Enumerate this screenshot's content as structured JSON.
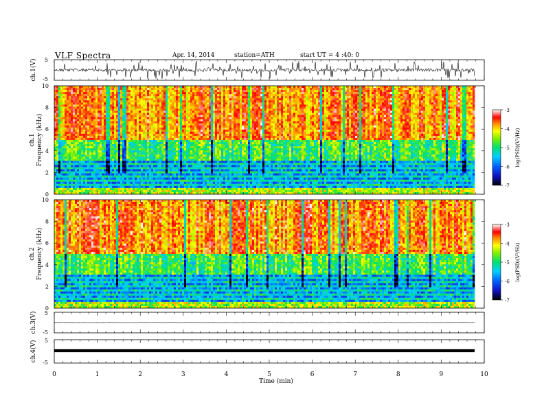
{
  "header": {
    "title": "VLF  Spectra",
    "date": "Apr. 14, 2014",
    "station": "station=ATH",
    "start_ut": "start  UT  =  4 :40: 0"
  },
  "chart_data": [
    {
      "type": "line",
      "panel": "ch1-waveform",
      "ylabel": "ch.1(V)",
      "ylim": [
        -5,
        5
      ],
      "y_ticks": [
        "5",
        "-5"
      ],
      "xlim": [
        0,
        10
      ],
      "description_series": [
        {
          "values_range": [
            -3.5,
            3.5
          ],
          "baseline": 0
        }
      ]
    },
    {
      "type": "heatmap",
      "panel": "ch1-spectrogram",
      "ylabel_top": "ch.1",
      "ylabel": "Frequency  (kHz)",
      "ylim": [
        0,
        10
      ],
      "y_ticks": [
        "0",
        "2",
        "4",
        "6",
        "8",
        "10"
      ],
      "xlim": [
        0,
        9.8
      ],
      "colorbar": {
        "label": "log(PSD)(V²/Hz)",
        "range": [
          -7,
          -3
        ],
        "ticks": [
          "-3",
          "-4",
          "-5",
          "-6",
          "-7"
        ]
      }
    },
    {
      "type": "heatmap",
      "panel": "ch2-spectrogram",
      "ylabel_top": "ch.2",
      "ylabel": "Frequency  (kHz)",
      "ylim": [
        0,
        10
      ],
      "y_ticks": [
        "0",
        "2",
        "4",
        "6",
        "8",
        "10"
      ],
      "xlim": [
        0,
        9.8
      ],
      "colorbar": {
        "label": "log(PSD)(V²/Hz)",
        "range": [
          -7,
          -3
        ],
        "ticks": [
          "-3",
          "-4",
          "-5",
          "-6",
          "-7"
        ]
      }
    },
    {
      "type": "line",
      "panel": "ch3-waveform",
      "ylabel": "ch.3(V)",
      "ylim": [
        -5,
        5
      ],
      "y_ticks": [
        "5",
        "-5"
      ],
      "xlim": [
        0,
        10
      ],
      "description_series": [
        {
          "values_range": [
            -0.3,
            0.3
          ],
          "baseline": 0
        }
      ]
    },
    {
      "type": "line",
      "panel": "ch4-waveform",
      "ylabel": "ch.4(V)",
      "ylim": [
        -5,
        5
      ],
      "y_ticks": [
        "5",
        "-5"
      ],
      "xlim": [
        0,
        10
      ],
      "description_series": [
        {
          "values_range": [
            -0.2,
            0.2
          ],
          "baseline": 0
        }
      ]
    }
  ],
  "xaxis": {
    "label": "Time  (min)",
    "ticks": [
      "0",
      "1",
      "2",
      "3",
      "4",
      "5",
      "6",
      "7",
      "8",
      "9",
      "10"
    ],
    "range": [
      0,
      10
    ]
  }
}
